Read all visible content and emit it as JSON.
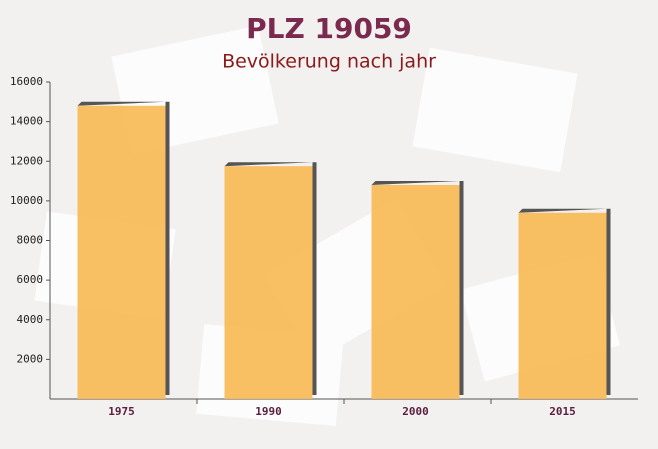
{
  "chart_data": {
    "type": "bar",
    "title": "PLZ 19059",
    "subtitle": "Bevölkerung nach jahr",
    "categories": [
      "1975",
      "1990",
      "2000",
      "2015"
    ],
    "values": [
      14800,
      11750,
      10800,
      9400
    ],
    "color": "#f7bb55",
    "ylim": [
      0,
      16000
    ],
    "yticks": [
      2000,
      4000,
      6000,
      8000,
      10000,
      12000,
      14000,
      16000
    ]
  }
}
